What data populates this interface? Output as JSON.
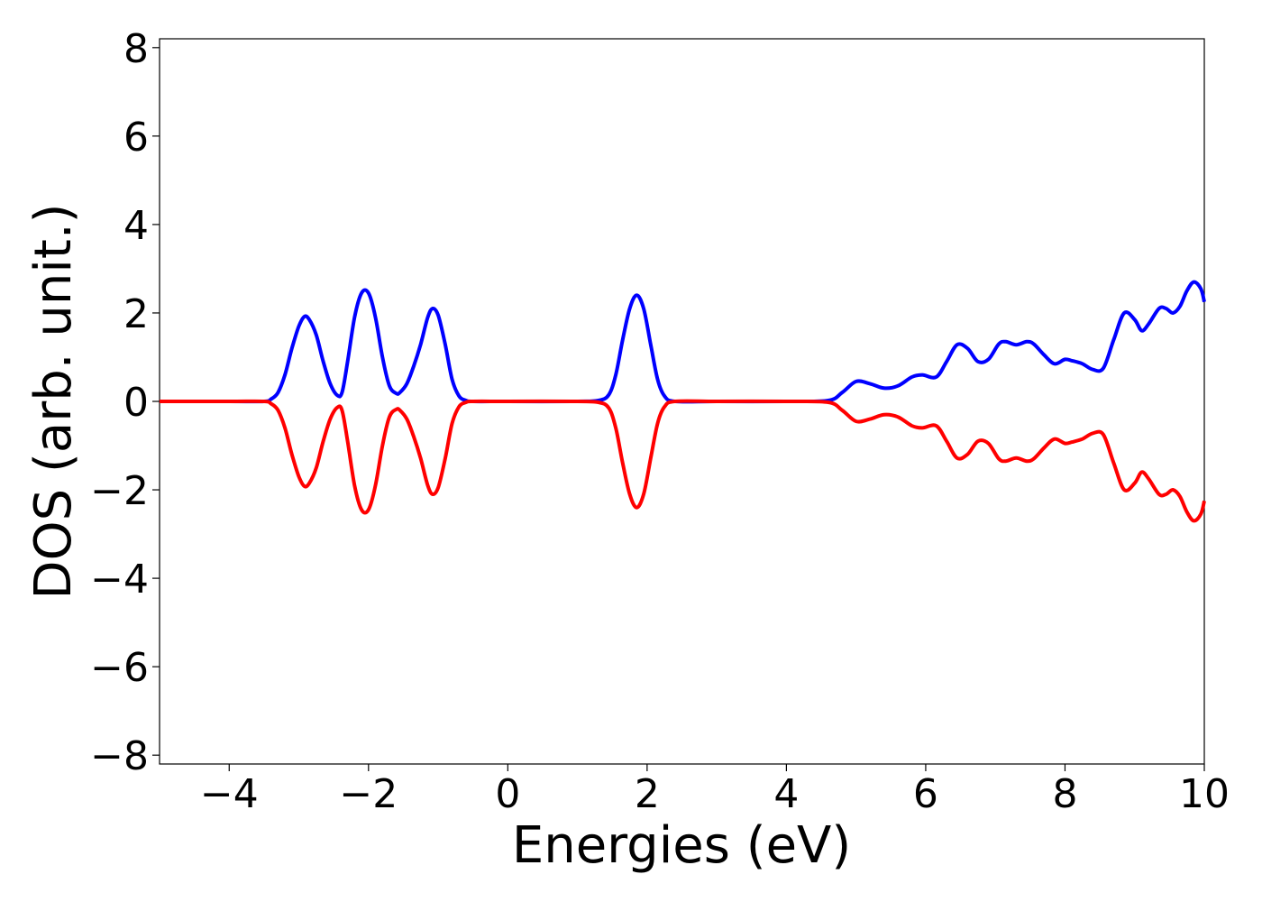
{
  "chart_data": {
    "type": "line",
    "title": "",
    "xlabel": "Energies (eV)",
    "ylabel": "DOS (arb. unit.)",
    "xlim": [
      -5,
      10
    ],
    "ylim": [
      -8.2,
      8.2
    ],
    "x_ticks": [
      -4,
      -2,
      0,
      2,
      4,
      6,
      8,
      10
    ],
    "x_tick_labels": [
      "−4",
      "−2",
      "0",
      "2",
      "4",
      "6",
      "8",
      "10"
    ],
    "y_ticks": [
      8,
      6,
      4,
      2,
      0,
      -2,
      -4,
      -6,
      -8
    ],
    "y_tick_labels": [
      "8",
      "6",
      "4",
      "2",
      "0",
      "−2",
      "−4",
      "−6",
      "−8"
    ],
    "grid": false,
    "legend": "none",
    "series": [
      {
        "color": "#0000ff",
        "x": [
          -5.0,
          -4.0,
          -3.5,
          -3.4,
          -3.3,
          -3.2,
          -3.1,
          -3.0,
          -2.92,
          -2.85,
          -2.75,
          -2.65,
          -2.55,
          -2.45,
          -2.38,
          -2.3,
          -2.2,
          -2.1,
          -2.0,
          -1.9,
          -1.8,
          -1.7,
          -1.6,
          -1.55,
          -1.45,
          -1.35,
          -1.25,
          -1.15,
          -1.08,
          -1.0,
          -0.9,
          -0.8,
          -0.7,
          -0.6,
          -0.5,
          0.0,
          1.0,
          1.3,
          1.45,
          1.55,
          1.65,
          1.75,
          1.85,
          1.95,
          2.05,
          2.15,
          2.25,
          2.4,
          3.0,
          4.0,
          4.6,
          4.8,
          5.0,
          5.2,
          5.4,
          5.6,
          5.8,
          5.95,
          6.15,
          6.3,
          6.45,
          6.6,
          6.75,
          6.9,
          7.05,
          7.15,
          7.3,
          7.45,
          7.55,
          7.7,
          7.85,
          8.0,
          8.1,
          8.25,
          8.4,
          8.55,
          8.7,
          8.85,
          9.0,
          9.1,
          9.2,
          9.35,
          9.45,
          9.55,
          9.65,
          9.75,
          9.85,
          9.95,
          10.0
        ],
        "y": [
          0.0,
          0.0,
          0.0,
          0.05,
          0.2,
          0.6,
          1.2,
          1.7,
          1.92,
          1.85,
          1.5,
          0.9,
          0.4,
          0.14,
          0.2,
          0.9,
          1.9,
          2.45,
          2.45,
          1.9,
          1.0,
          0.35,
          0.18,
          0.2,
          0.4,
          0.8,
          1.3,
          1.9,
          2.1,
          1.95,
          1.3,
          0.5,
          0.12,
          0.02,
          0.0,
          0.0,
          0.0,
          0.02,
          0.15,
          0.6,
          1.4,
          2.1,
          2.4,
          2.1,
          1.3,
          0.5,
          0.12,
          0.0,
          0.0,
          0.0,
          0.02,
          0.2,
          0.45,
          0.4,
          0.3,
          0.35,
          0.55,
          0.6,
          0.55,
          0.9,
          1.28,
          1.2,
          0.9,
          0.95,
          1.3,
          1.35,
          1.28,
          1.35,
          1.3,
          1.05,
          0.85,
          0.95,
          0.92,
          0.85,
          0.72,
          0.75,
          1.4,
          2.0,
          1.85,
          1.6,
          1.75,
          2.1,
          2.1,
          2.0,
          2.15,
          2.5,
          2.7,
          2.55,
          2.25
        ]
      },
      {
        "color": "#ff0000",
        "x": [
          -5.0,
          -4.0,
          -3.5,
          -3.4,
          -3.3,
          -3.2,
          -3.1,
          -3.0,
          -2.92,
          -2.85,
          -2.75,
          -2.65,
          -2.55,
          -2.45,
          -2.38,
          -2.3,
          -2.2,
          -2.1,
          -2.0,
          -1.9,
          -1.8,
          -1.7,
          -1.6,
          -1.55,
          -1.45,
          -1.35,
          -1.25,
          -1.15,
          -1.08,
          -1.0,
          -0.9,
          -0.8,
          -0.7,
          -0.6,
          -0.5,
          0.0,
          1.0,
          1.3,
          1.45,
          1.55,
          1.65,
          1.75,
          1.85,
          1.95,
          2.05,
          2.15,
          2.25,
          2.4,
          3.0,
          4.0,
          4.6,
          4.8,
          5.0,
          5.2,
          5.4,
          5.6,
          5.8,
          5.95,
          6.15,
          6.3,
          6.45,
          6.6,
          6.75,
          6.9,
          7.05,
          7.15,
          7.3,
          7.45,
          7.55,
          7.7,
          7.85,
          8.0,
          8.1,
          8.25,
          8.4,
          8.55,
          8.7,
          8.85,
          9.0,
          9.1,
          9.2,
          9.35,
          9.45,
          9.55,
          9.65,
          9.75,
          9.85,
          9.95,
          10.0
        ],
        "y": [
          0.0,
          0.0,
          0.0,
          -0.05,
          -0.2,
          -0.6,
          -1.2,
          -1.7,
          -1.92,
          -1.85,
          -1.5,
          -0.9,
          -0.4,
          -0.14,
          -0.2,
          -0.9,
          -1.9,
          -2.45,
          -2.45,
          -1.9,
          -1.0,
          -0.35,
          -0.18,
          -0.2,
          -0.4,
          -0.8,
          -1.3,
          -1.9,
          -2.1,
          -1.95,
          -1.3,
          -0.5,
          -0.12,
          -0.02,
          0.0,
          0.0,
          0.0,
          -0.02,
          -0.15,
          -0.6,
          -1.4,
          -2.1,
          -2.4,
          -2.1,
          -1.3,
          -0.5,
          -0.12,
          0.0,
          0.0,
          0.0,
          -0.02,
          -0.2,
          -0.45,
          -0.4,
          -0.3,
          -0.35,
          -0.55,
          -0.6,
          -0.55,
          -0.9,
          -1.28,
          -1.2,
          -0.9,
          -0.95,
          -1.3,
          -1.35,
          -1.28,
          -1.35,
          -1.3,
          -1.05,
          -0.85,
          -0.95,
          -0.92,
          -0.85,
          -0.72,
          -0.75,
          -1.4,
          -2.0,
          -1.85,
          -1.6,
          -1.75,
          -2.1,
          -2.1,
          -2.0,
          -2.15,
          -2.5,
          -2.7,
          -2.55,
          -2.25
        ]
      }
    ]
  }
}
